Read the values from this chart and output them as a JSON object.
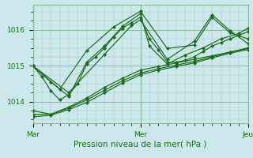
{
  "xlabel": "Pression niveau de la mer( hPa )",
  "ylim": [
    1013.4,
    1016.7
  ],
  "xlim": [
    0,
    48
  ],
  "yticks": [
    1014,
    1015,
    1016
  ],
  "xticks": [
    0,
    24,
    48
  ],
  "xtick_labels": [
    "Mar",
    "Mer",
    "Jeu"
  ],
  "bg_color": "#cce8ec",
  "grid_color_major": "#88bb99",
  "grid_color_minor": "#aaccbb",
  "line_color": "#1a6b1a",
  "marker": "D",
  "markersize": 2.2,
  "linewidth": 0.85,
  "series": [
    [
      [
        0,
        1015.0
      ],
      [
        2,
        1014.7
      ],
      [
        4,
        1014.3
      ],
      [
        6,
        1014.05
      ],
      [
        8,
        1014.2
      ],
      [
        10,
        1014.5
      ],
      [
        12,
        1015.05
      ],
      [
        14,
        1015.25
      ],
      [
        16,
        1015.5
      ],
      [
        18,
        1015.8
      ],
      [
        20,
        1016.05
      ],
      [
        22,
        1016.2
      ],
      [
        24,
        1016.35
      ],
      [
        26,
        1015.75
      ],
      [
        28,
        1015.45
      ],
      [
        30,
        1015.1
      ],
      [
        32,
        1015.1
      ],
      [
        34,
        1015.15
      ],
      [
        36,
        1015.25
      ],
      [
        38,
        1015.4
      ],
      [
        40,
        1015.55
      ],
      [
        42,
        1015.65
      ],
      [
        44,
        1015.75
      ],
      [
        46,
        1015.85
      ],
      [
        48,
        1015.95
      ]
    ],
    [
      [
        0,
        1015.0
      ],
      [
        4,
        1014.55
      ],
      [
        8,
        1014.15
      ],
      [
        12,
        1015.1
      ],
      [
        16,
        1015.55
      ],
      [
        20,
        1016.1
      ],
      [
        24,
        1016.45
      ],
      [
        26,
        1015.55
      ],
      [
        30,
        1015.05
      ],
      [
        34,
        1015.3
      ],
      [
        38,
        1015.5
      ],
      [
        42,
        1015.75
      ],
      [
        46,
        1015.9
      ],
      [
        48,
        1016.05
      ]
    ],
    [
      [
        0,
        1013.75
      ],
      [
        4,
        1013.65
      ],
      [
        8,
        1013.85
      ],
      [
        12,
        1014.1
      ],
      [
        16,
        1014.4
      ],
      [
        20,
        1014.65
      ],
      [
        24,
        1014.88
      ],
      [
        28,
        1014.98
      ],
      [
        32,
        1015.08
      ],
      [
        36,
        1015.18
      ],
      [
        40,
        1015.28
      ],
      [
        44,
        1015.38
      ],
      [
        48,
        1015.48
      ]
    ],
    [
      [
        0,
        1013.65
      ],
      [
        4,
        1013.65
      ],
      [
        8,
        1013.82
      ],
      [
        12,
        1014.05
      ],
      [
        16,
        1014.32
      ],
      [
        20,
        1014.58
      ],
      [
        24,
        1014.8
      ],
      [
        28,
        1014.92
      ],
      [
        32,
        1015.02
      ],
      [
        36,
        1015.12
      ],
      [
        40,
        1015.25
      ],
      [
        44,
        1015.38
      ],
      [
        48,
        1015.5
      ]
    ],
    [
      [
        0,
        1013.58
      ],
      [
        4,
        1013.62
      ],
      [
        8,
        1013.78
      ],
      [
        12,
        1013.98
      ],
      [
        16,
        1014.25
      ],
      [
        20,
        1014.52
      ],
      [
        24,
        1014.75
      ],
      [
        28,
        1014.88
      ],
      [
        32,
        1014.98
      ],
      [
        36,
        1015.08
      ],
      [
        40,
        1015.22
      ],
      [
        44,
        1015.35
      ],
      [
        48,
        1015.45
      ]
    ],
    [
      [
        0,
        1015.0
      ],
      [
        6,
        1014.35
      ],
      [
        12,
        1015.42
      ],
      [
        18,
        1016.08
      ],
      [
        24,
        1016.52
      ],
      [
        30,
        1015.48
      ],
      [
        36,
        1015.58
      ],
      [
        40,
        1016.35
      ],
      [
        44,
        1015.92
      ],
      [
        48,
        1015.75
      ]
    ],
    [
      [
        0,
        1015.0
      ],
      [
        8,
        1014.25
      ],
      [
        16,
        1015.32
      ],
      [
        22,
        1016.12
      ],
      [
        24,
        1016.28
      ],
      [
        30,
        1015.18
      ],
      [
        36,
        1015.68
      ],
      [
        40,
        1016.42
      ],
      [
        44,
        1015.98
      ],
      [
        48,
        1015.62
      ]
    ]
  ]
}
